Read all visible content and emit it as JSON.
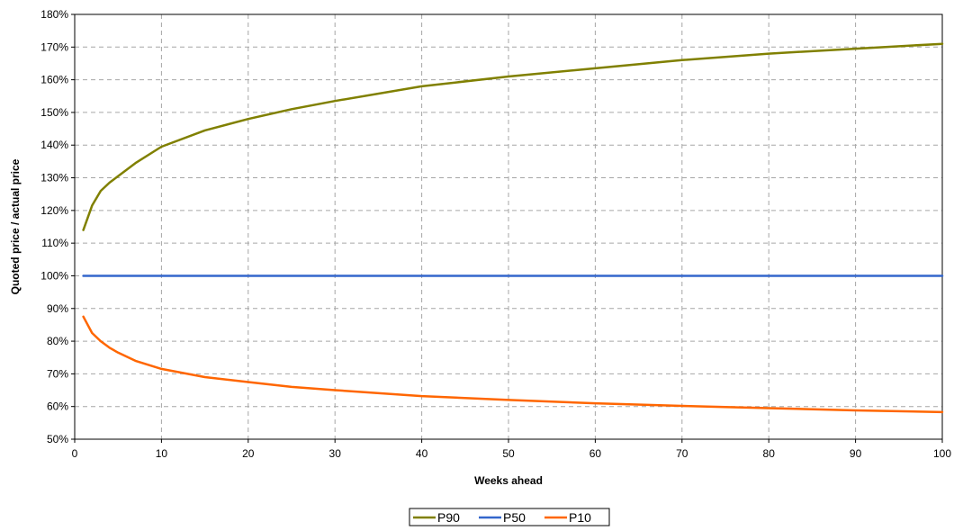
{
  "chart_data": {
    "type": "line",
    "title": "",
    "xlabel": "Weeks ahead",
    "ylabel": "Quoted price / actual price",
    "xlim": [
      0,
      100
    ],
    "ylim": [
      0.5,
      1.8
    ],
    "x_ticks": [
      0,
      10,
      20,
      30,
      40,
      50,
      60,
      70,
      80,
      90,
      100
    ],
    "x_tick_labels": [
      "0",
      "10",
      "20",
      "30",
      "40",
      "50",
      "60",
      "70",
      "80",
      "90",
      "100"
    ],
    "y_ticks": [
      0.5,
      0.6,
      0.7,
      0.8,
      0.9,
      1.0,
      1.1,
      1.2,
      1.3,
      1.4,
      1.5,
      1.6,
      1.7,
      1.8
    ],
    "y_tick_labels": [
      "50%",
      "60%",
      "70%",
      "80%",
      "90%",
      "100%",
      "110%",
      "120%",
      "130%",
      "140%",
      "150%",
      "160%",
      "170%",
      "180%"
    ],
    "grid": true,
    "legend_position": "bottom-center",
    "series": [
      {
        "name": "P90",
        "color": "#808000",
        "x": [
          1,
          2,
          3,
          4,
          5,
          7,
          10,
          15,
          20,
          25,
          30,
          40,
          50,
          60,
          70,
          80,
          90,
          100
        ],
        "values": [
          1.14,
          1.215,
          1.26,
          1.285,
          1.305,
          1.345,
          1.395,
          1.445,
          1.48,
          1.51,
          1.535,
          1.58,
          1.61,
          1.635,
          1.66,
          1.68,
          1.695,
          1.71
        ]
      },
      {
        "name": "P50",
        "color": "#3366CC",
        "x": [
          1,
          100
        ],
        "values": [
          1.0,
          1.0
        ]
      },
      {
        "name": "P10",
        "color": "#FF6600",
        "x": [
          1,
          2,
          3,
          4,
          5,
          7,
          10,
          15,
          20,
          25,
          30,
          40,
          50,
          60,
          70,
          80,
          90,
          100
        ],
        "values": [
          0.875,
          0.825,
          0.8,
          0.78,
          0.765,
          0.74,
          0.715,
          0.69,
          0.675,
          0.66,
          0.65,
          0.632,
          0.62,
          0.61,
          0.602,
          0.595,
          0.588,
          0.583
        ]
      }
    ]
  }
}
